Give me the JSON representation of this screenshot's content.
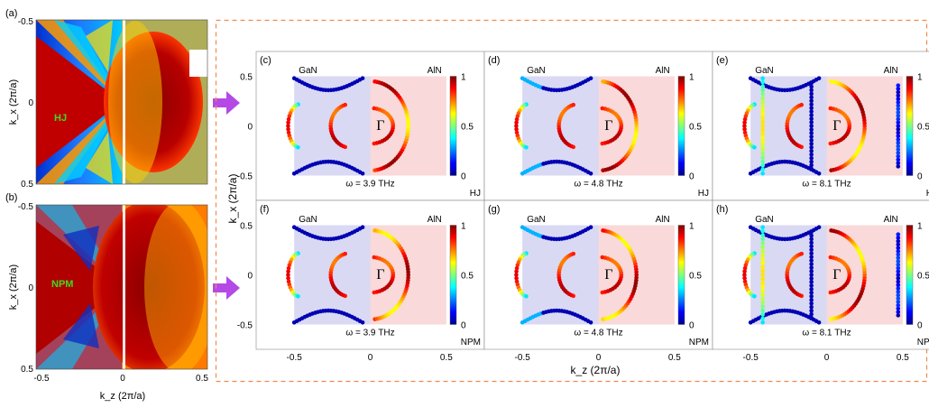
{
  "colors": {
    "dash_border": "#f08a4b",
    "arrow": "#b449e6",
    "gan_region": "#c9c9f0",
    "aln_region": "#f6c9c9",
    "left_label_hj": "#3ddc1e",
    "left_label_npm": "#3ddc1e"
  },
  "left_panels": {
    "top": {
      "label": "(a)",
      "name": "HJ",
      "y_ticks": [
        "-0.5",
        "0",
        "0.5"
      ],
      "ylabel": "k_x (2π/a)"
    },
    "bottom": {
      "label": "(b)",
      "name": "NPM",
      "y_ticks": [
        "-0.5",
        "0",
        "0.5"
      ],
      "ylabel": "k_x (2π/a)"
    },
    "x_ticks": [
      "-0.5",
      "0",
      "0.5"
    ],
    "xlabel": "k_z (2π/a)"
  },
  "chart_data": {
    "type": "scatter",
    "xlabel": "k_z (2π/a)",
    "ylabel": "k_x (2π/a)",
    "xlim": [
      -0.75,
      0.75
    ],
    "ylim": [
      -0.75,
      0.75
    ],
    "x_ticks": [
      "-0.5",
      "0",
      "0.5"
    ],
    "y_ticks": [
      "0.5",
      "0",
      "-0.5"
    ],
    "colorbar_ticks": [
      "1",
      "0.5",
      "0"
    ],
    "region_labels": {
      "left": "GaN",
      "right": "AlN"
    },
    "gamma_label": "Γ",
    "panels": [
      {
        "label": "(c)",
        "omega": "ω = 3.9 THz",
        "mode": "HJ"
      },
      {
        "label": "(d)",
        "omega": "ω = 4.8 THz",
        "mode": "HJ"
      },
      {
        "label": "(e)",
        "omega": "ω = 8.1 THz",
        "mode": "HJ"
      },
      {
        "label": "(f)",
        "omega": "ω = 3.9 THz",
        "mode": "NPM"
      },
      {
        "label": "(g)",
        "omega": "ω = 4.8 THz",
        "mode": "NPM"
      },
      {
        "label": "(h)",
        "omega": "ω = 8.1 THz",
        "mode": "NPM"
      }
    ]
  }
}
